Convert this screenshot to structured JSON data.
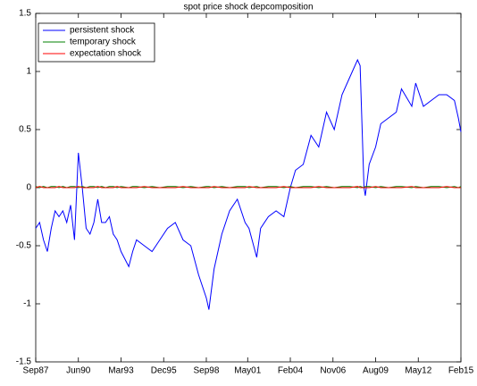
{
  "chart_data": {
    "type": "line",
    "title": "spot price shock depcomposition",
    "x": [
      "Sep87",
      "Dec87",
      "Mar88",
      "Jun88",
      "Sep88",
      "Dec88",
      "Mar89",
      "Jun89",
      "Sep89",
      "Dec89",
      "Mar90",
      "Jun90",
      "Sep90",
      "Dec90",
      "Mar91",
      "Jun91",
      "Sep91",
      "Dec91",
      "Mar92",
      "Jun92",
      "Sep92",
      "Dec92",
      "Mar93",
      "Sep93",
      "Dec93",
      "Mar94",
      "Sep94",
      "Mar95",
      "Sep95",
      "Mar96",
      "Sep96",
      "Mar97",
      "Sep97",
      "Mar98",
      "Sep98",
      "Nov98",
      "Mar99",
      "Sep99",
      "Mar00",
      "Sep00",
      "Mar01",
      "Jun01",
      "Dec01",
      "Mar02",
      "Sep02",
      "Mar03",
      "Sep03",
      "Feb04",
      "Jun04",
      "Dec04",
      "Jun05",
      "Dec05",
      "Jun06",
      "Dec06",
      "Jun07",
      "Dec07",
      "Jun08",
      "Aug08",
      "Nov08",
      "Dec08",
      "Mar09",
      "Aug09",
      "Dec09",
      "Jun10",
      "Dec10",
      "Apr11",
      "Dec11",
      "Mar12",
      "Sep12",
      "Mar13",
      "Sep13",
      "Mar14",
      "Sep14",
      "Dec14",
      "Feb15"
    ],
    "series": [
      {
        "name": "persistent shock",
        "color": "#0000ff",
        "values": [
          -0.35,
          -0.3,
          -0.45,
          -0.55,
          -0.35,
          -0.2,
          -0.25,
          -0.2,
          -0.3,
          -0.15,
          -0.45,
          0.3,
          0,
          -0.35,
          -0.4,
          -0.3,
          -0.1,
          -0.3,
          -0.3,
          -0.25,
          -0.4,
          -0.45,
          -0.55,
          -0.68,
          -0.55,
          -0.45,
          -0.5,
          -0.55,
          -0.45,
          -0.35,
          -0.3,
          -0.45,
          -0.5,
          -0.75,
          -0.95,
          -1.05,
          -0.7,
          -0.4,
          -0.2,
          -0.1,
          -0.3,
          -0.35,
          -0.6,
          -0.35,
          -0.25,
          -0.2,
          -0.25,
          0,
          0.15,
          0.2,
          0.45,
          0.35,
          0.65,
          0.5,
          0.8,
          0.95,
          1.1,
          1.05,
          0,
          -0.07,
          0.2,
          0.35,
          0.55,
          0.6,
          0.65,
          0.85,
          0.7,
          0.9,
          0.7,
          0.75,
          0.8,
          0.8,
          0.75,
          0.6,
          0.48
        ]
      },
      {
        "name": "temporary shock",
        "color": "#008000",
        "values": [
          0.01,
          0,
          0.01,
          0,
          0.01,
          0.01,
          0,
          0.01,
          0,
          0.01,
          0.01,
          0,
          0.01,
          0,
          0.01,
          0.01,
          0,
          0.01,
          0,
          0.01,
          0.01,
          0,
          0.01,
          0,
          0.01,
          0.01,
          0,
          0.01,
          0,
          0.01,
          0.01,
          0,
          0.01,
          0,
          0.01,
          0.01,
          0,
          0.01,
          0,
          0.01,
          0.01,
          0,
          0.01,
          0,
          0.01,
          0.01,
          0,
          0.01,
          0,
          0.01,
          0.01,
          0,
          0.01,
          0,
          0.01,
          0.01,
          0,
          0.01,
          0,
          0.01,
          0.01,
          0,
          0.01,
          0,
          0.01,
          0.01,
          0,
          0.01,
          0,
          0.01,
          0.01,
          0,
          0.01,
          0,
          0.01
        ]
      },
      {
        "name": "expectation shock",
        "color": "#ff0000",
        "values": [
          0,
          0.01,
          0,
          0,
          0,
          0,
          0.01,
          0,
          0,
          0,
          0,
          0.01,
          0,
          0,
          0,
          0,
          0.01,
          0,
          0,
          0,
          0,
          0.01,
          0,
          0,
          0,
          0,
          0.01,
          0,
          0,
          0,
          0,
          0.01,
          0,
          0,
          0,
          0,
          0.01,
          0,
          0,
          0,
          0,
          0.01,
          0,
          0,
          0,
          0,
          0.01,
          0,
          0,
          0,
          0,
          0.01,
          0,
          0,
          0,
          0,
          0.01,
          0,
          0,
          0,
          0,
          0.01,
          0,
          0,
          0,
          0,
          0.01,
          0,
          0,
          0,
          0,
          0.01,
          0,
          0,
          0
        ]
      }
    ],
    "xlim": [
      "Sep87",
      "Feb15"
    ],
    "xticks": [
      "Sep87",
      "Jun90",
      "Mar93",
      "Dec95",
      "Sep98",
      "May01",
      "Feb04",
      "Nov06",
      "Aug09",
      "May12",
      "Feb15"
    ],
    "ylim": [
      -1.5,
      1.5
    ],
    "yticks": [
      -1.5,
      -1,
      -0.5,
      0,
      0.5,
      1,
      1.5
    ],
    "legend": "upper left"
  }
}
